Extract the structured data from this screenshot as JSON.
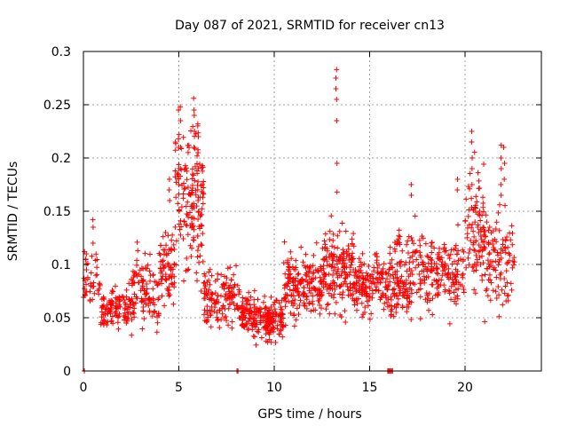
{
  "chart_data": {
    "type": "scatter",
    "title": "Day 087 of 2021, SRMTID for receiver cn13",
    "xlabel": "GPS time / hours",
    "ylabel": "SRMTID / TECUs",
    "xlim": [
      0,
      24
    ],
    "ylim": [
      0,
      0.3
    ],
    "xticks": [
      0,
      5,
      10,
      15,
      20
    ],
    "xtick_labels": [
      "0",
      "5",
      "10",
      "15",
      "20"
    ],
    "yticks": [
      0,
      0.05,
      0.1,
      0.15,
      0.2,
      0.25,
      0.3
    ],
    "ytick_labels": [
      "0",
      "0.05",
      "0.1",
      "0.15",
      "0.2",
      "0.25",
      "0.3"
    ],
    "grid": true,
    "marker": "+",
    "color": "#ff0000",
    "series": [
      {
        "name": "SRMTID",
        "segments": [
          {
            "x_start": 0.0,
            "x_end": 0.9,
            "y_low": 0.045,
            "y_high": 0.125,
            "count": 40
          },
          {
            "x_start": 0.9,
            "x_end": 2.5,
            "y_low": 0.032,
            "y_high": 0.085,
            "count": 110
          },
          {
            "x_start": 2.5,
            "x_end": 4.0,
            "y_low": 0.025,
            "y_high": 0.125,
            "count": 110
          },
          {
            "x_start": 4.0,
            "x_end": 4.8,
            "y_low": 0.05,
            "y_high": 0.14,
            "count": 70
          },
          {
            "x_start": 4.8,
            "x_end": 6.3,
            "y_low": 0.06,
            "y_high": 0.255,
            "count": 160
          },
          {
            "x_start": 6.3,
            "x_end": 8.2,
            "y_low": 0.03,
            "y_high": 0.11,
            "count": 140
          },
          {
            "x_start": 8.2,
            "x_end": 9.0,
            "y_low": 0.025,
            "y_high": 0.085,
            "count": 80
          },
          {
            "x_start": 9.0,
            "x_end": 10.5,
            "y_low": 0.018,
            "y_high": 0.075,
            "count": 140
          },
          {
            "x_start": 10.5,
            "x_end": 12.5,
            "y_low": 0.035,
            "y_high": 0.125,
            "count": 180
          },
          {
            "x_start": 12.5,
            "x_end": 14.2,
            "y_low": 0.04,
            "y_high": 0.15,
            "count": 170
          },
          {
            "x_start": 14.2,
            "x_end": 16.0,
            "y_low": 0.04,
            "y_high": 0.12,
            "count": 150
          },
          {
            "x_start": 16.0,
            "x_end": 17.5,
            "y_low": 0.03,
            "y_high": 0.155,
            "count": 140
          },
          {
            "x_start": 17.5,
            "x_end": 20.0,
            "y_low": 0.04,
            "y_high": 0.14,
            "count": 180
          },
          {
            "x_start": 20.0,
            "x_end": 21.0,
            "y_low": 0.05,
            "y_high": 0.22,
            "count": 90
          },
          {
            "x_start": 21.0,
            "x_end": 22.6,
            "y_low": 0.04,
            "y_high": 0.17,
            "count": 110
          }
        ],
        "spikes": [
          {
            "x": 0.15,
            "y": [
              0.11,
              0.105,
              0.095
            ]
          },
          {
            "x": 0.5,
            "y": [
              0.142,
              0.135,
              0.12
            ]
          },
          {
            "x": 5.0,
            "y": [
              0.245,
              0.222,
              0.218,
              0.21,
              0.19,
              0.175
            ]
          },
          {
            "x": 5.1,
            "y": [
              0.248,
              0.235,
              0.21,
              0.19
            ]
          },
          {
            "x": 5.8,
            "y": [
              0.256,
              0.245,
              0.24,
              0.225,
              0.21
            ]
          },
          {
            "x": 6.0,
            "y": [
              0.232,
              0.22,
              0.205,
              0.19,
              0.16
            ]
          },
          {
            "x": 4.5,
            "y": [
              0.18,
              0.17,
              0.16
            ]
          },
          {
            "x": 13.25,
            "y": [
              0.283,
              0.275,
              0.265,
              0.255,
              0.235
            ]
          },
          {
            "x": 13.3,
            "y": [
              0.195,
              0.168
            ]
          },
          {
            "x": 17.2,
            "y": [
              0.175,
              0.165
            ]
          },
          {
            "x": 19.6,
            "y": [
              0.18,
              0.17
            ]
          },
          {
            "x": 20.35,
            "y": [
              0.225,
              0.215,
              0.2,
              0.19,
              0.175
            ]
          },
          {
            "x": 21.9,
            "y": [
              0.212,
              0.2,
              0.19,
              0.175,
              0.165
            ]
          },
          {
            "x": 22.05,
            "y": [
              0.21,
              0.195,
              0.18
            ]
          }
        ],
        "zero_points": [
          0.05,
          8.05,
          8.1,
          15.95,
          16.0,
          16.05,
          16.1,
          16.15,
          16.2
        ]
      }
    ]
  }
}
